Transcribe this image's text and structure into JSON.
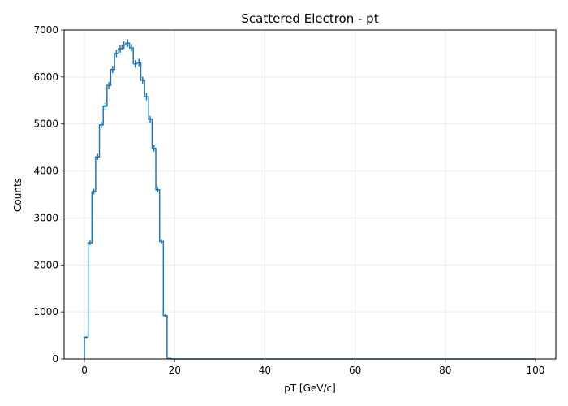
{
  "chart_data": {
    "type": "histogram",
    "title": "Scattered Electron - pt",
    "xlabel": "pT [GeV/c]",
    "ylabel": "Counts",
    "xlim": [
      -4.5,
      104.5
    ],
    "ylim": [
      0,
      7000
    ],
    "xticks": [
      0,
      20,
      40,
      60,
      80,
      100
    ],
    "yticks": [
      0,
      1000,
      2000,
      3000,
      4000,
      5000,
      6000,
      7000
    ],
    "grid": true,
    "color": "#1f77b4",
    "bin_edges": [
      0,
      0.83,
      1.67,
      2.5,
      3.33,
      4.17,
      5,
      5.83,
      6.67,
      7.5,
      8.33,
      9.17,
      10,
      10.83,
      11.67,
      12.5,
      13.33,
      14.17,
      15,
      15.83,
      16.67,
      17.5,
      18.33,
      19.17,
      20,
      20.83,
      21.67,
      100
    ],
    "values": [
      460,
      2470,
      3560,
      4300,
      4980,
      5380,
      5820,
      6160,
      6500,
      6600,
      6680,
      6720,
      6620,
      6280,
      6310,
      5930,
      5580,
      5100,
      4480,
      3600,
      2500,
      920,
      10,
      0,
      0,
      0,
      0
    ],
    "errors": [
      21,
      50,
      60,
      66,
      71,
      73,
      76,
      78,
      81,
      81,
      82,
      82,
      81,
      79,
      79,
      77,
      75,
      71,
      67,
      60,
      50,
      30,
      3,
      0,
      0,
      0,
      0
    ]
  }
}
